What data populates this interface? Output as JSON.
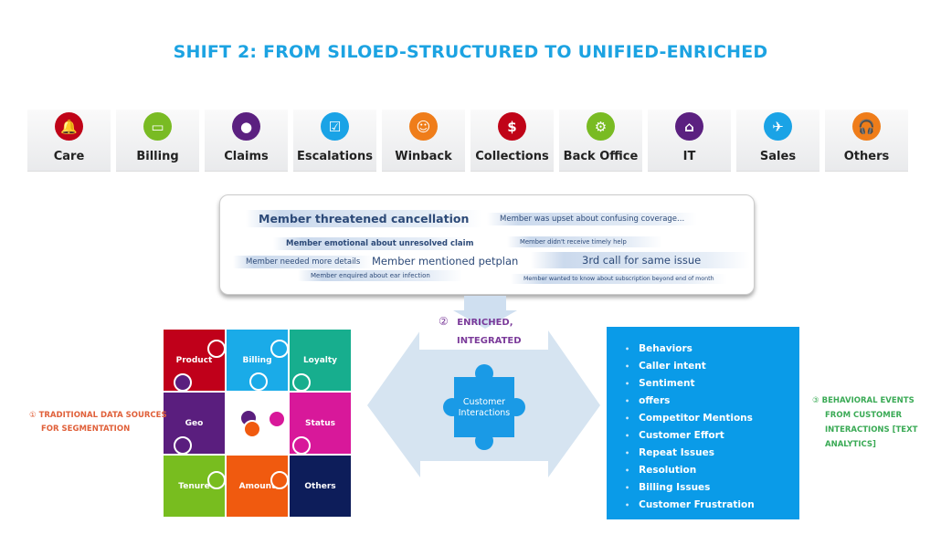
{
  "title": "SHIFT 2: FROM SILOED-STRUCTURED TO UNIFIED-ENRICHED",
  "channels": [
    {
      "label": "Care",
      "icon": "bell-icon",
      "glyph": "🔔",
      "color": "#c00418"
    },
    {
      "label": "Billing",
      "icon": "credit-card-icon",
      "glyph": "▭",
      "color": "#79bb23"
    },
    {
      "label": "Claims",
      "icon": "person-icon",
      "glyph": "●",
      "color": "#5b2080"
    },
    {
      "label": "Escalations",
      "icon": "checkbox-icon",
      "glyph": "☑",
      "color": "#1aa3e6"
    },
    {
      "label": "Winback",
      "icon": "smiley-icon",
      "glyph": "☺",
      "color": "#ef7d1a"
    },
    {
      "label": "Collections",
      "icon": "dollar-icon",
      "glyph": "$",
      "color": "#c00418"
    },
    {
      "label": "Back Office",
      "icon": "gears-icon",
      "glyph": "⚙",
      "color": "#79bb23"
    },
    {
      "label": "IT",
      "icon": "basket-icon",
      "glyph": "⌂",
      "color": "#5b2080"
    },
    {
      "label": "Sales",
      "icon": "running-person-icon",
      "glyph": "✈",
      "color": "#1aa3e6"
    },
    {
      "label": "Others",
      "icon": "headset-icon",
      "glyph": "🎧",
      "color": "#ef7d1a"
    }
  ],
  "phrases": [
    "Member threatened cancellation",
    "Member was upset about confusing coverage...",
    "Member emotional about unresolved claim",
    "Member didn't receive timely help",
    "Member needed more details",
    "Member  mentioned petplan",
    "3rd call for same issue",
    "Member enquired about ear infection",
    "Member wanted to know about subscription beyond end of month"
  ],
  "enriched": {
    "number": "②",
    "line1": "ENRICHED,",
    "line2": "INTEGRATED",
    "color": "#7b3b9a"
  },
  "traditional": {
    "number": "①",
    "line1": "TRADITIONAL DATA SOURCES",
    "line2": "FOR SEGMENTATION",
    "color": "#e0603a"
  },
  "puzzle": [
    {
      "label": "Product",
      "color": "#c0001a"
    },
    {
      "label": "Billing",
      "color": "#1aabe8"
    },
    {
      "label": "Loyalty",
      "color": "#17ae8e"
    },
    {
      "label": "Geo",
      "color": "#5a1e7e"
    },
    {
      "label": "",
      "color": "#ffffff"
    },
    {
      "label": "Status",
      "color": "#d8189a"
    },
    {
      "label": "Tenure",
      "color": "#78bd1f"
    },
    {
      "label": "Amount",
      "color": "#f05a0f"
    },
    {
      "label": "Others",
      "color": "#0d1d5a"
    }
  ],
  "center_piece": {
    "line1": "Customer",
    "line2": "Interactions",
    "color": "#1a9ae6"
  },
  "behaviors": [
    "Behaviors",
    "Caller intent",
    "Sentiment",
    "offers",
    "Competitor Mentions",
    "Customer Effort",
    "Repeat Issues",
    "Resolution",
    "Billing Issues",
    "Customer Frustration"
  ],
  "behavioral": {
    "number": "③",
    "lines": [
      "BEHAVIORAL EVENTS",
      "FROM CUSTOMER",
      "INTERACTIONS [TEXT",
      "ANALYTICS]"
    ],
    "color": "#3aaa55"
  }
}
